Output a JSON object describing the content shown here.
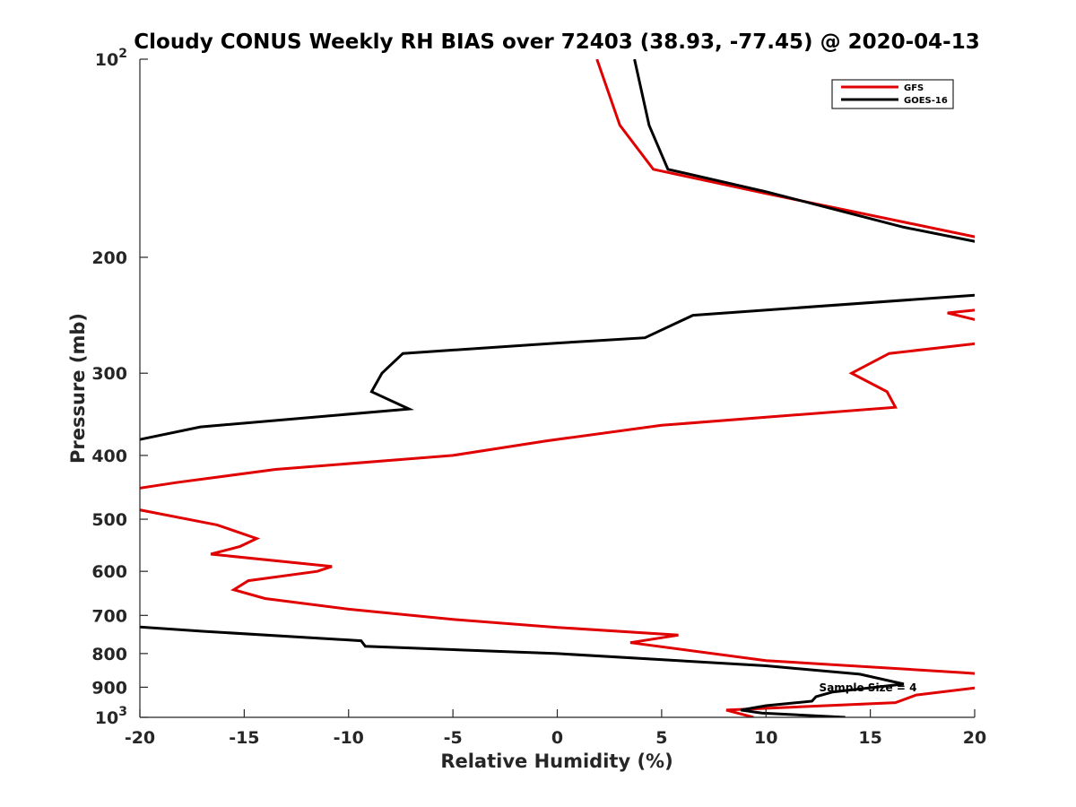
{
  "chart_data": {
    "type": "line",
    "title": "Cloudy CONUS Weekly RH BIAS over 72403 (38.93, -77.45) @ 2020-04-13",
    "xlabel": "Relative Humidity (%)",
    "ylabel": "Pressure (mb)",
    "xlim": [
      -20,
      20
    ],
    "ylim": [
      100,
      1000
    ],
    "y_scale": "log",
    "y_reversed": true,
    "x_ticks": [
      -20,
      -15,
      -10,
      -5,
      0,
      5,
      10,
      15,
      20
    ],
    "x_tick_labels": [
      "-20",
      "-15",
      "-10",
      "-5",
      "0",
      "5",
      "10",
      "15",
      "20"
    ],
    "y_ticks": [
      100,
      200,
      300,
      400,
      500,
      600,
      700,
      800,
      900,
      1000
    ],
    "y_tick_labels": [
      {
        "base": "10",
        "exp": "2"
      },
      {
        "base": "200",
        "exp": ""
      },
      {
        "base": "300",
        "exp": ""
      },
      {
        "base": "400",
        "exp": ""
      },
      {
        "base": "500",
        "exp": ""
      },
      {
        "base": "600",
        "exp": ""
      },
      {
        "base": "700",
        "exp": ""
      },
      {
        "base": "800",
        "exp": ""
      },
      {
        "base": "900",
        "exp": ""
      },
      {
        "base": "10",
        "exp": "3"
      }
    ],
    "grid": false,
    "legend_position": "top-right",
    "annotation": "Sample Size = 4",
    "series": [
      {
        "name": "GFS",
        "color": "#e00000",
        "points": [
          [
            9.4,
            1000
          ],
          [
            8.1,
            975
          ],
          [
            16.2,
            950
          ],
          [
            17.2,
            925
          ],
          [
            20.3,
            900
          ],
          [
            20.5,
            860
          ],
          [
            19.4,
            855
          ],
          [
            10.0,
            820
          ],
          [
            3.5,
            770
          ],
          [
            5.8,
            750
          ],
          [
            0.0,
            730
          ],
          [
            -5.0,
            710
          ],
          [
            -10.0,
            685
          ],
          [
            -14.0,
            660
          ],
          [
            -15.5,
            640
          ],
          [
            -14.8,
            620
          ],
          [
            -11.5,
            600
          ],
          [
            -10.8,
            590
          ],
          [
            -16.6,
            565
          ],
          [
            -15.2,
            550
          ],
          [
            -14.4,
            535
          ],
          [
            -16.3,
            510
          ],
          [
            -20.6,
            480
          ],
          [
            -20.3,
            450
          ],
          [
            -18.3,
            440
          ],
          [
            -13.5,
            420
          ],
          [
            -5.0,
            400
          ],
          [
            -0.5,
            380
          ],
          [
            5.0,
            360
          ],
          [
            10.0,
            350
          ],
          [
            16.2,
            338
          ],
          [
            15.8,
            320
          ],
          [
            14.1,
            300
          ],
          [
            15.9,
            280
          ],
          [
            20.3,
            270
          ],
          [
            20.3,
            250
          ],
          [
            18.7,
            243
          ],
          [
            20.3,
            240
          ],
          [
            20.3,
            187
          ],
          [
            10.0,
            160
          ],
          [
            4.6,
            147
          ],
          [
            3.0,
            126
          ],
          [
            1.9,
            100
          ]
        ]
      },
      {
        "name": "GOES-16",
        "color": "#000000",
        "points": [
          [
            13.8,
            1000
          ],
          [
            9.8,
            985
          ],
          [
            8.8,
            975
          ],
          [
            10.0,
            960
          ],
          [
            12.2,
            945
          ],
          [
            12.4,
            930
          ],
          [
            13.2,
            915
          ],
          [
            16.6,
            890
          ],
          [
            14.5,
            860
          ],
          [
            10.0,
            835
          ],
          [
            0.0,
            800
          ],
          [
            -9.2,
            780
          ],
          [
            -9.4,
            765
          ],
          [
            -17.0,
            740
          ],
          [
            -20.3,
            728
          ],
          [
            -20.3,
            380
          ],
          [
            -17.1,
            362
          ],
          [
            -7.1,
            340
          ],
          [
            -8.9,
            320
          ],
          [
            -8.4,
            300
          ],
          [
            -7.4,
            280
          ],
          [
            0.0,
            270
          ],
          [
            4.2,
            265
          ],
          [
            6.5,
            245
          ],
          [
            20.3,
            228
          ],
          [
            20.3,
            190
          ],
          [
            16.6,
            180
          ],
          [
            10.0,
            159
          ],
          [
            5.3,
            147
          ],
          [
            4.4,
            126
          ],
          [
            3.7,
            100
          ]
        ]
      }
    ]
  }
}
